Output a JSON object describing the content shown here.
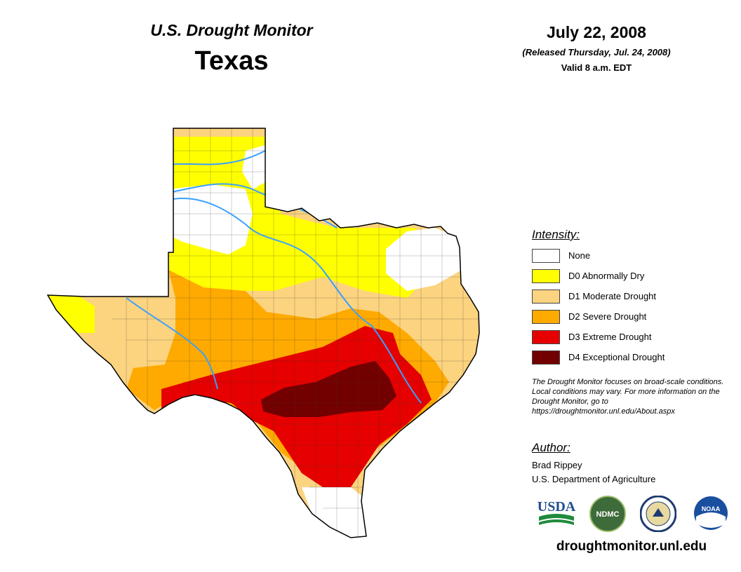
{
  "header": {
    "title": "U.S. Drought Monitor",
    "state": "Texas",
    "date": "July 22, 2008",
    "released": "(Released Thursday, Jul. 24, 2008)",
    "valid": "Valid 8 a.m. EDT"
  },
  "legend": {
    "title": "Intensity:",
    "items": [
      {
        "label": "None",
        "color": "#ffffff"
      },
      {
        "label": "D0 Abnormally Dry",
        "color": "#ffff00"
      },
      {
        "label": "D1 Moderate Drought",
        "color": "#fcd37f"
      },
      {
        "label": "D2 Severe Drought",
        "color": "#ffaa00"
      },
      {
        "label": "D3 Extreme Drought",
        "color": "#e60000"
      },
      {
        "label": "D4 Exceptional Drought",
        "color": "#730000"
      }
    ]
  },
  "note": "The Drought Monitor focuses on broad-scale conditions. Local conditions may vary. For more information on the Drought Monitor, go to https://droughtmonitor.unl.edu/About.aspx",
  "author": {
    "title": "Author:",
    "name": "Brad Rippey",
    "org": "U.S. Department of Agriculture"
  },
  "logos": {
    "usda": "USDA",
    "ndmc": "NDMC",
    "noaa": "NOAA"
  },
  "website": "droughtmonitor.unl.edu"
}
